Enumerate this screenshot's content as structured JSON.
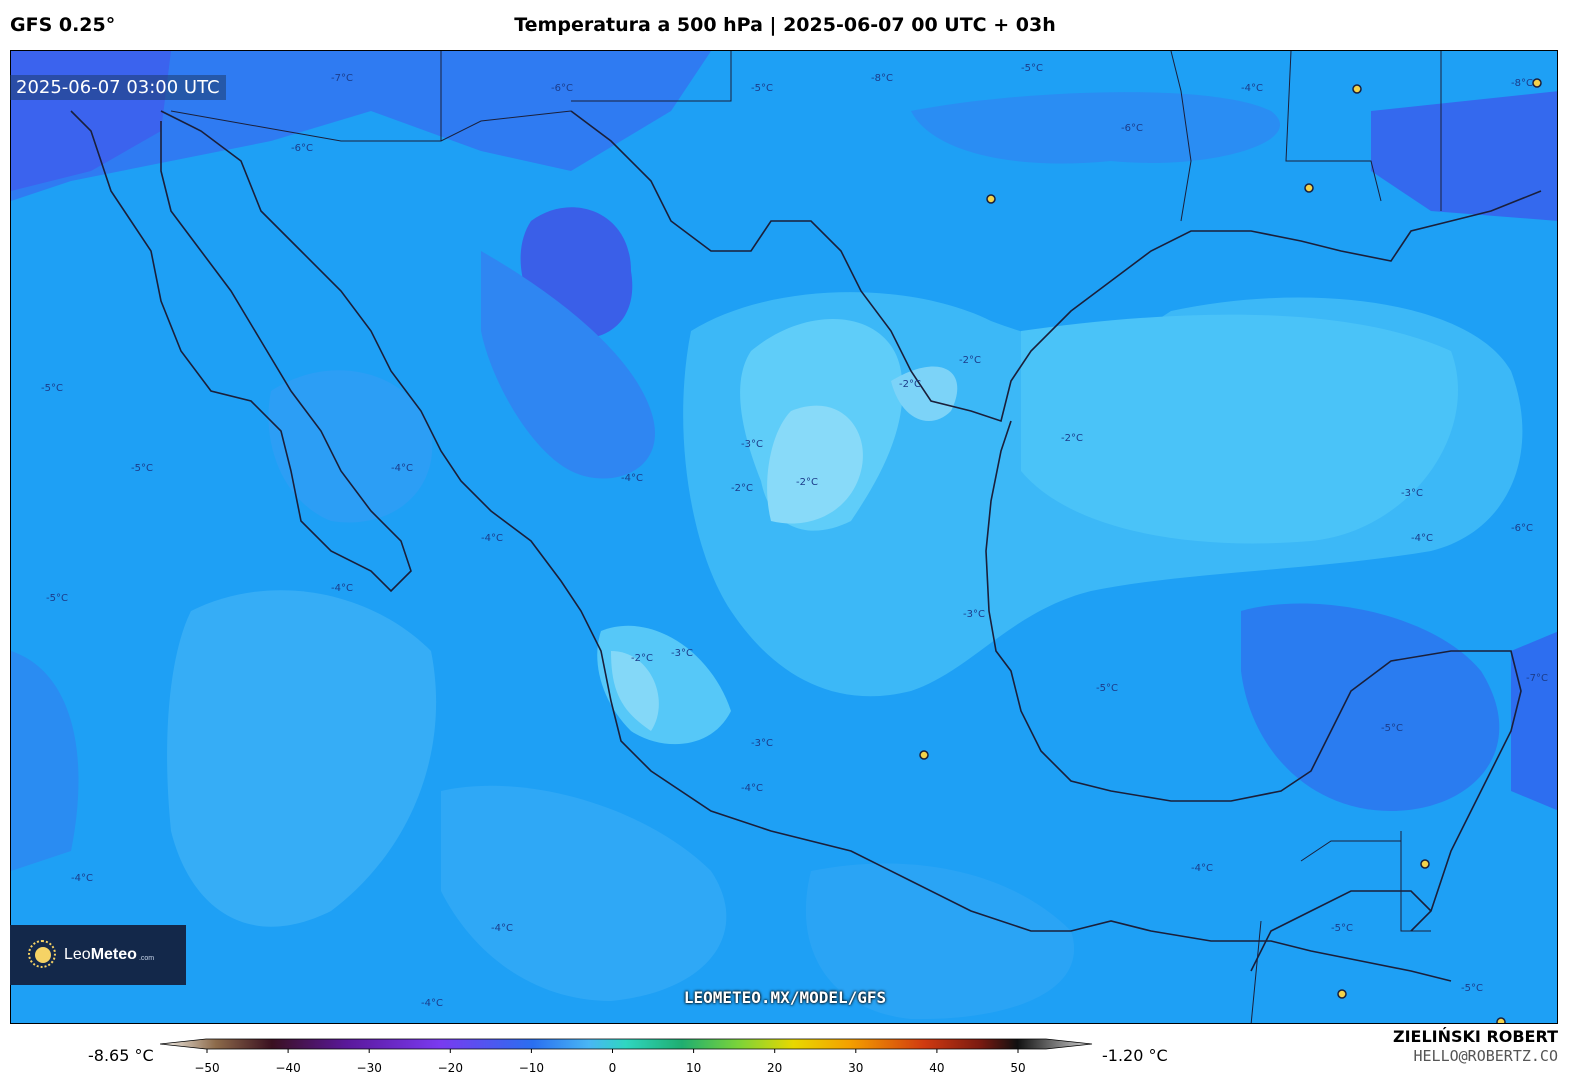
{
  "header": {
    "model": "GFS 0.25°",
    "title": "Temperatura a 500 hPa | 2025-06-07 00 UTC + 03h"
  },
  "map": {
    "valid_time": "2025-06-07 03:00 UTC",
    "contour_labels": [
      "-7°C",
      "-6°C",
      "-5°C",
      "-4°C",
      "-3°C",
      "-2°C",
      "-8°C"
    ],
    "colors": {
      "cold": "#2f6cf0",
      "mid": "#1e9bf5",
      "warm": "#4cc6f8",
      "warmest": "#80d8f8",
      "coast": "#1a1f3a"
    }
  },
  "brand": {
    "logo_light": "Leo",
    "logo_bold": "Meteo",
    "logo_domain": ".com",
    "url": "LEOMETEO.MX/MODEL/GFS"
  },
  "colorbar": {
    "min_label": "-8.65 °C",
    "max_label": "-1.20 °C",
    "ticks": [
      "−50",
      "−40",
      "−30",
      "−20",
      "−10",
      "0",
      "10",
      "20",
      "30",
      "40",
      "50"
    ]
  },
  "credit": {
    "name": "ZIELIŃSKI ROBERT",
    "email": "HELLO@ROBERTZ.CO"
  }
}
